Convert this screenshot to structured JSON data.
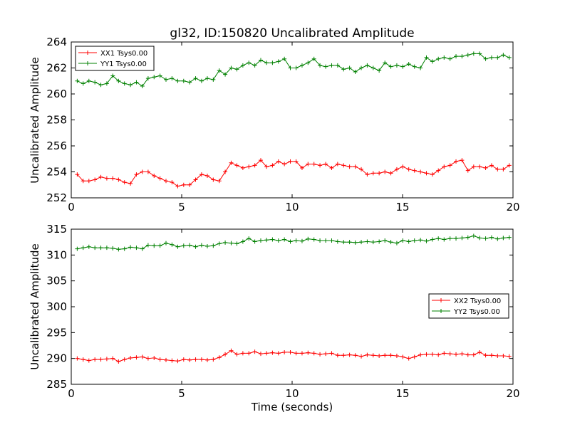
{
  "chart_data": [
    {
      "type": "line",
      "title": "gl32, ID:150820 Uncalibrated Amplitude",
      "xlabel": "",
      "ylabel": "Uncalibrated Amplitude",
      "xlim": [
        0,
        20
      ],
      "ylim": [
        252,
        264
      ],
      "xticks": [
        0,
        5,
        10,
        15,
        20
      ],
      "yticks": [
        252,
        254,
        256,
        258,
        260,
        262,
        264
      ],
      "grid": false,
      "legend_position": "top-left",
      "series": [
        {
          "name": "XX1 Tsys0.00",
          "color": "#ff0000",
          "x": [
            0.27,
            0.54,
            0.8,
            1.07,
            1.34,
            1.61,
            1.88,
            2.14,
            2.41,
            2.68,
            2.95,
            3.22,
            3.48,
            3.75,
            4.02,
            4.29,
            4.56,
            4.82,
            5.09,
            5.36,
            5.63,
            5.9,
            6.16,
            6.43,
            6.7,
            6.97,
            7.24,
            7.5,
            7.77,
            8.04,
            8.31,
            8.58,
            8.84,
            9.11,
            9.38,
            9.65,
            9.92,
            10.18,
            10.45,
            10.72,
            10.99,
            11.26,
            11.52,
            11.79,
            12.06,
            12.33,
            12.6,
            12.86,
            13.13,
            13.4,
            13.67,
            13.94,
            14.2,
            14.47,
            14.74,
            15.01,
            15.28,
            15.54,
            15.81,
            16.08,
            16.35,
            16.62,
            16.88,
            17.15,
            17.42,
            17.69,
            17.96,
            18.22,
            18.49,
            18.76,
            19.03,
            19.3,
            19.56,
            19.83
          ],
          "y": [
            253.8,
            253.3,
            253.3,
            253.4,
            253.6,
            253.5,
            253.5,
            253.4,
            253.2,
            253.1,
            253.8,
            254.0,
            254.0,
            253.7,
            253.5,
            253.3,
            253.2,
            252.9,
            253.0,
            253.0,
            253.4,
            253.8,
            253.7,
            253.4,
            253.3,
            254.0,
            254.7,
            254.5,
            254.3,
            254.4,
            254.5,
            254.9,
            254.4,
            254.5,
            254.8,
            254.6,
            254.8,
            254.8,
            254.3,
            254.6,
            254.6,
            254.5,
            254.6,
            254.3,
            254.6,
            254.5,
            254.4,
            254.4,
            254.2,
            253.8,
            253.9,
            253.9,
            254.0,
            253.9,
            254.2,
            254.4,
            254.2,
            254.1,
            254.0,
            253.9,
            253.8,
            254.1,
            254.4,
            254.5,
            254.8,
            254.9,
            254.1,
            254.4,
            254.4,
            254.3,
            254.5,
            254.2,
            254.2,
            254.5
          ]
        },
        {
          "name": "YY1 Tsys0.00",
          "color": "#008000",
          "x": [
            0.27,
            0.54,
            0.8,
            1.07,
            1.34,
            1.61,
            1.88,
            2.14,
            2.41,
            2.68,
            2.95,
            3.22,
            3.48,
            3.75,
            4.02,
            4.29,
            4.56,
            4.82,
            5.09,
            5.36,
            5.63,
            5.9,
            6.16,
            6.43,
            6.7,
            6.97,
            7.24,
            7.5,
            7.77,
            8.04,
            8.31,
            8.58,
            8.84,
            9.11,
            9.38,
            9.65,
            9.92,
            10.18,
            10.45,
            10.72,
            10.99,
            11.26,
            11.52,
            11.79,
            12.06,
            12.33,
            12.6,
            12.86,
            13.13,
            13.4,
            13.67,
            13.94,
            14.2,
            14.47,
            14.74,
            15.01,
            15.28,
            15.54,
            15.81,
            16.08,
            16.35,
            16.62,
            16.88,
            17.15,
            17.42,
            17.69,
            17.96,
            18.22,
            18.49,
            18.76,
            19.03,
            19.3,
            19.56,
            19.83
          ],
          "y": [
            261.0,
            260.8,
            261.0,
            260.9,
            260.7,
            260.8,
            261.4,
            261.0,
            260.8,
            260.7,
            260.9,
            260.6,
            261.2,
            261.3,
            261.4,
            261.1,
            261.2,
            261.0,
            261.0,
            260.9,
            261.2,
            261.0,
            261.2,
            261.1,
            261.8,
            261.5,
            262.0,
            261.9,
            262.2,
            262.4,
            262.2,
            262.6,
            262.4,
            262.4,
            262.5,
            262.7,
            262.0,
            262.0,
            262.2,
            262.4,
            262.7,
            262.2,
            262.1,
            262.2,
            262.2,
            261.9,
            262.0,
            261.7,
            262.0,
            262.2,
            262.0,
            261.8,
            262.4,
            262.1,
            262.2,
            262.1,
            262.3,
            262.1,
            262.0,
            262.8,
            262.5,
            262.7,
            262.8,
            262.7,
            262.9,
            262.9,
            263.0,
            263.1,
            263.1,
            262.7,
            262.8,
            262.8,
            263.0,
            262.8
          ]
        }
      ]
    },
    {
      "type": "line",
      "title": "",
      "xlabel": "Time (seconds)",
      "ylabel": "Uncalibrated Amplitude",
      "xlim": [
        0,
        20
      ],
      "ylim": [
        285,
        315
      ],
      "xticks": [
        0,
        5,
        10,
        15,
        20
      ],
      "yticks": [
        285,
        290,
        295,
        300,
        305,
        310,
        315
      ],
      "grid": false,
      "legend_position": "center-right",
      "series": [
        {
          "name": "XX2 Tsys0.00",
          "color": "#ff0000",
          "x": [
            0.27,
            0.54,
            0.8,
            1.07,
            1.34,
            1.61,
            1.88,
            2.14,
            2.41,
            2.68,
            2.95,
            3.22,
            3.48,
            3.75,
            4.02,
            4.29,
            4.56,
            4.82,
            5.09,
            5.36,
            5.63,
            5.9,
            6.16,
            6.43,
            6.7,
            6.97,
            7.24,
            7.5,
            7.77,
            8.04,
            8.31,
            8.58,
            8.84,
            9.11,
            9.38,
            9.65,
            9.92,
            10.18,
            10.45,
            10.72,
            10.99,
            11.26,
            11.52,
            11.79,
            12.06,
            12.33,
            12.6,
            12.86,
            13.13,
            13.4,
            13.67,
            13.94,
            14.2,
            14.47,
            14.74,
            15.01,
            15.28,
            15.54,
            15.81,
            16.08,
            16.35,
            16.62,
            16.88,
            17.15,
            17.42,
            17.69,
            17.96,
            18.22,
            18.49,
            18.76,
            19.03,
            19.3,
            19.56,
            19.83
          ],
          "y": [
            290.0,
            289.8,
            289.6,
            289.8,
            289.8,
            289.9,
            290.0,
            289.4,
            289.8,
            290.1,
            290.2,
            290.3,
            290.0,
            290.1,
            289.8,
            289.7,
            289.6,
            289.5,
            289.8,
            289.7,
            289.8,
            289.8,
            289.7,
            289.8,
            290.2,
            290.8,
            291.5,
            290.8,
            291.0,
            291.0,
            291.3,
            290.9,
            291.0,
            291.1,
            291.0,
            291.2,
            291.2,
            291.0,
            291.0,
            291.1,
            291.0,
            290.8,
            290.9,
            291.0,
            290.6,
            290.6,
            290.7,
            290.6,
            290.4,
            290.7,
            290.6,
            290.5,
            290.6,
            290.6,
            290.5,
            290.3,
            290.0,
            290.3,
            290.7,
            290.8,
            290.8,
            290.7,
            291.0,
            290.9,
            290.8,
            290.9,
            290.7,
            290.7,
            291.2,
            290.6,
            290.6,
            290.5,
            290.5,
            290.4
          ]
        },
        {
          "name": "YY2 Tsys0.00",
          "color": "#008000",
          "x": [
            0.27,
            0.54,
            0.8,
            1.07,
            1.34,
            1.61,
            1.88,
            2.14,
            2.41,
            2.68,
            2.95,
            3.22,
            3.48,
            3.75,
            4.02,
            4.29,
            4.56,
            4.82,
            5.09,
            5.36,
            5.63,
            5.9,
            6.16,
            6.43,
            6.7,
            6.97,
            7.24,
            7.5,
            7.77,
            8.04,
            8.31,
            8.58,
            8.84,
            9.11,
            9.38,
            9.65,
            9.92,
            10.18,
            10.45,
            10.72,
            10.99,
            11.26,
            11.52,
            11.79,
            12.06,
            12.33,
            12.6,
            12.86,
            13.13,
            13.4,
            13.67,
            13.94,
            14.2,
            14.47,
            14.74,
            15.01,
            15.28,
            15.54,
            15.81,
            16.08,
            16.35,
            16.62,
            16.88,
            17.15,
            17.42,
            17.69,
            17.96,
            18.22,
            18.49,
            18.76,
            19.03,
            19.3,
            19.56,
            19.83
          ],
          "y": [
            311.2,
            311.4,
            311.6,
            311.4,
            311.4,
            311.4,
            311.3,
            311.1,
            311.2,
            311.5,
            311.4,
            311.2,
            311.9,
            311.8,
            311.8,
            312.3,
            312.0,
            311.6,
            311.8,
            311.9,
            311.6,
            311.9,
            311.7,
            311.8,
            312.2,
            312.4,
            312.3,
            312.2,
            312.6,
            313.2,
            312.6,
            312.8,
            312.9,
            313.0,
            312.8,
            313.0,
            312.6,
            312.8,
            312.7,
            313.1,
            313.0,
            312.8,
            312.8,
            312.8,
            312.6,
            312.5,
            312.5,
            312.4,
            312.5,
            312.6,
            312.5,
            312.6,
            312.8,
            312.5,
            312.3,
            312.8,
            312.6,
            312.8,
            312.9,
            312.7,
            313.0,
            313.2,
            313.0,
            313.2,
            313.2,
            313.3,
            313.4,
            313.7,
            313.3,
            313.2,
            313.4,
            313.1,
            313.3,
            313.4
          ]
        }
      ]
    }
  ]
}
